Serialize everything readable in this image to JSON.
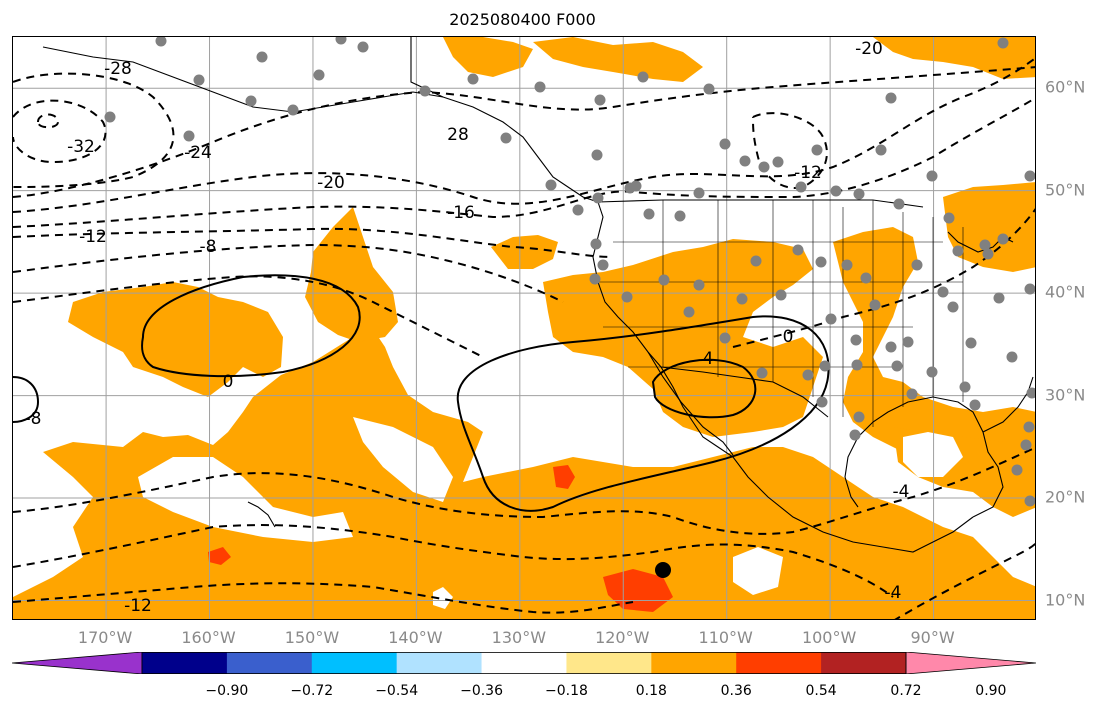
{
  "title": "2025080400 F000",
  "map_axes": {
    "lat_labels": [
      {
        "text": "60°N",
        "lat": 60
      },
      {
        "text": "50°N",
        "lat": 50
      },
      {
        "text": "40°N",
        "lat": 40
      },
      {
        "text": "30°N",
        "lat": 30
      },
      {
        "text": "20°N",
        "lat": 20
      },
      {
        "text": "10°N",
        "lat": 10
      }
    ],
    "lon_labels": [
      {
        "text": "170°W",
        "lon": -170
      },
      {
        "text": "160°W",
        "lon": -160
      },
      {
        "text": "150°W",
        "lon": -150
      },
      {
        "text": "140°W",
        "lon": -140
      },
      {
        "text": "130°W",
        "lon": -130
      },
      {
        "text": "120°W",
        "lon": -120
      },
      {
        "text": "110°W",
        "lon": -110
      },
      {
        "text": "100°W",
        "lon": -100
      },
      {
        "text": "90°W",
        "lon": -90
      }
    ],
    "lon_range": [
      -179,
      -80
    ],
    "lat_range": [
      8,
      65
    ]
  },
  "contour_labels": [
    "-28",
    "-32",
    "-24",
    "28",
    "-20",
    "-16",
    "-12",
    "-8",
    "0",
    "0",
    "4",
    "-12",
    "-20",
    "-4",
    "-4",
    "-12",
    "-8"
  ],
  "colorbar": {
    "colors": [
      "#9932cc",
      "#00008b",
      "#3a5fcd",
      "#00bfff",
      "#b0e2ff",
      "#ffffff",
      "#ffe78a",
      "#ffa500",
      "#ff3e00",
      "#b22222",
      "#ff88aa"
    ],
    "tick_labels": [
      "−0.90",
      "−0.72",
      "−0.54",
      "−0.36",
      "−0.18",
      "0.18",
      "0.36",
      "0.54",
      "0.72",
      "0.90"
    ]
  },
  "colors": {
    "fill_main": "#ffa500",
    "fill_high": "#ff3e00",
    "gridline": "#a0a0a0",
    "station_dot": "#808080",
    "label_color": "#8a8a8a"
  }
}
